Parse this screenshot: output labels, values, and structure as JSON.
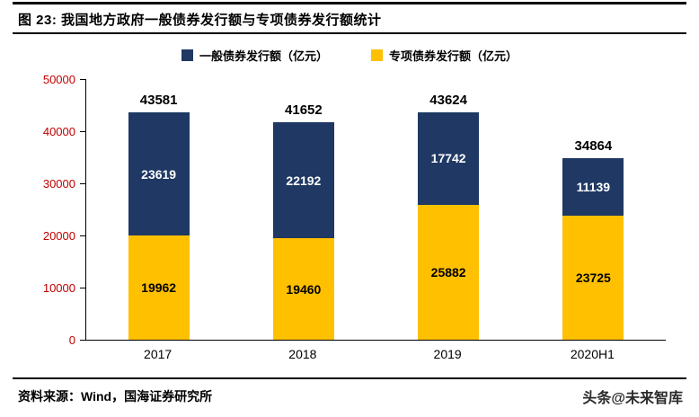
{
  "header": {
    "title": "图 23:  我国地方政府一般债券发行额与专项债券发行额统计"
  },
  "legend": {
    "items": [
      {
        "label": "一般债券发行额（亿元）",
        "color": "#1F3864"
      },
      {
        "label": "专项债券发行额（亿元）",
        "color": "#FFC000"
      }
    ]
  },
  "chart_data": {
    "type": "bar",
    "stacked": true,
    "title": "我国地方政府一般债券发行额与专项债券发行额统计",
    "categories": [
      "2017",
      "2018",
      "2019",
      "2020H1"
    ],
    "series": [
      {
        "name": "一般债券发行额（亿元）",
        "color": "#1F3864",
        "values": [
          23619,
          22192,
          17742,
          11139
        ]
      },
      {
        "name": "专项债券发行额（亿元）",
        "color": "#FFC000",
        "values": [
          19962,
          19460,
          25882,
          23725
        ]
      }
    ],
    "totals": [
      43581,
      41652,
      43624,
      34864
    ],
    "xlabel": "",
    "ylabel": "",
    "ylim": [
      0,
      50000
    ],
    "yticks": [
      0,
      10000,
      20000,
      30000,
      40000,
      50000
    ],
    "grid": false,
    "legend_position": "top",
    "ytick_color": "#c00000"
  },
  "footer": {
    "source": "资料来源：Wind，国海证券研究所",
    "watermark": "头条@未来智库"
  }
}
